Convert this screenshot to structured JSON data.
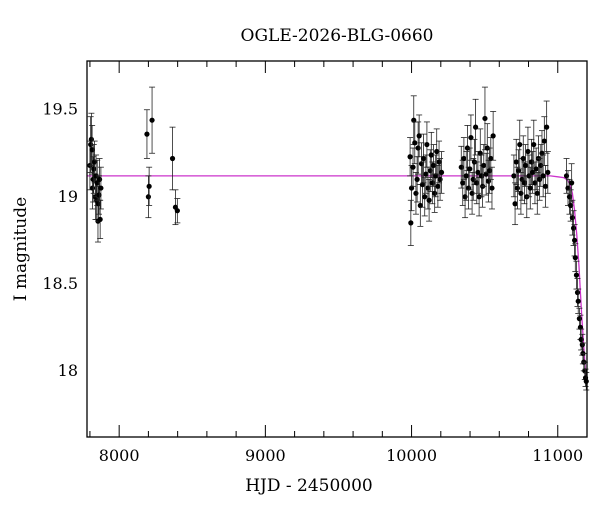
{
  "chart_data": {
    "type": "scatter",
    "title": "OGLE-2026-BLG-0660",
    "xlabel": "HJD - 2450000",
    "ylabel": "I magnitude",
    "xlim": [
      7780,
      11200
    ],
    "ylim": [
      19.78,
      17.62
    ],
    "y_inverted": true,
    "x_ticks": [
      8000,
      9000,
      10000,
      11000
    ],
    "y_ticks": [
      18,
      18.5,
      19,
      19.5
    ],
    "x_tick_labels": [
      "8000",
      "9000",
      "10000",
      "11000"
    ],
    "y_tick_labels": [
      "18",
      "18.5",
      "19",
      "19.5"
    ],
    "baseline_mag": 19.12,
    "colors": {
      "points": "#000000",
      "model": "#cc33cc",
      "frame": "#000000"
    },
    "series": [
      {
        "style": "points-with-errorbars",
        "points": [
          [
            7800,
            19.18,
            0.14
          ],
          [
            7805,
            19.3,
            0.16
          ],
          [
            7810,
            19.33,
            0.15
          ],
          [
            7815,
            19.27,
            0.14
          ],
          [
            7818,
            19.05,
            0.12
          ],
          [
            7822,
            19.1,
            0.13
          ],
          [
            7826,
            19.16,
            0.14
          ],
          [
            7832,
            19.2,
            0.12
          ],
          [
            7838,
            19.0,
            0.13
          ],
          [
            7842,
            19.12,
            0.12
          ],
          [
            7846,
            18.98,
            0.11
          ],
          [
            7850,
            19.08,
            0.13
          ],
          [
            7855,
            18.86,
            0.12
          ],
          [
            7858,
            18.96,
            0.1
          ],
          [
            7862,
            19.01,
            0.11
          ],
          [
            7866,
            19.1,
            0.12
          ],
          [
            7870,
            18.87,
            0.11
          ],
          [
            7875,
            19.05,
            0.12
          ],
          [
            8190,
            19.36,
            0.14
          ],
          [
            8200,
            19.0,
            0.12
          ],
          [
            8205,
            19.06,
            0.11
          ],
          [
            8225,
            19.44,
            0.19
          ],
          [
            8365,
            19.22,
            0.18
          ],
          [
            8385,
            18.94,
            0.1
          ],
          [
            8398,
            18.92,
            0.07
          ],
          [
            9990,
            19.23,
            0.11
          ],
          [
            9995,
            18.85,
            0.13
          ],
          [
            10000,
            19.05,
            0.13
          ],
          [
            10010,
            19.17,
            0.11
          ],
          [
            10015,
            19.44,
            0.14
          ],
          [
            10022,
            19.31,
            0.12
          ],
          [
            10030,
            19.02,
            0.12
          ],
          [
            10038,
            19.1,
            0.13
          ],
          [
            10045,
            19.28,
            0.15
          ],
          [
            10052,
            19.35,
            0.12
          ],
          [
            10060,
            18.95,
            0.12
          ],
          [
            10068,
            19.19,
            0.12
          ],
          [
            10075,
            19.07,
            0.13
          ],
          [
            10082,
            19.22,
            0.14
          ],
          [
            10090,
            19.0,
            0.11
          ],
          [
            10098,
            19.13,
            0.11
          ],
          [
            10105,
            19.3,
            0.13
          ],
          [
            10112,
            19.05,
            0.12
          ],
          [
            10120,
            18.98,
            0.12
          ],
          [
            10128,
            19.15,
            0.12
          ],
          [
            10135,
            19.24,
            0.13
          ],
          [
            10142,
            19.08,
            0.12
          ],
          [
            10150,
            19.18,
            0.12
          ],
          [
            10158,
            19.02,
            0.11
          ],
          [
            10165,
            19.12,
            0.12
          ],
          [
            10172,
            19.26,
            0.13
          ],
          [
            10180,
            19.06,
            0.12
          ],
          [
            10188,
            19.2,
            0.12
          ],
          [
            10195,
            19.1,
            0.12
          ],
          [
            10205,
            19.14,
            0.12
          ],
          [
            10340,
            19.17,
            0.12
          ],
          [
            10350,
            19.08,
            0.13
          ],
          [
            10358,
            19.22,
            0.12
          ],
          [
            10366,
            19.0,
            0.12
          ],
          [
            10374,
            19.12,
            0.14
          ],
          [
            10382,
            19.28,
            0.13
          ],
          [
            10390,
            19.05,
            0.12
          ],
          [
            10398,
            19.16,
            0.12
          ],
          [
            10406,
            19.34,
            0.13
          ],
          [
            10414,
            19.02,
            0.12
          ],
          [
            10422,
            19.1,
            0.12
          ],
          [
            10430,
            19.2,
            0.13
          ],
          [
            10438,
            19.4,
            0.16
          ],
          [
            10446,
            19.08,
            0.12
          ],
          [
            10454,
            19.14,
            0.12
          ],
          [
            10462,
            19.0,
            0.11
          ],
          [
            10470,
            19.25,
            0.14
          ],
          [
            10478,
            19.12,
            0.12
          ],
          [
            10486,
            19.06,
            0.12
          ],
          [
            10494,
            19.18,
            0.12
          ],
          [
            10502,
            19.45,
            0.18
          ],
          [
            10510,
            19.13,
            0.12
          ],
          [
            10518,
            19.28,
            0.14
          ],
          [
            10526,
            19.09,
            0.12
          ],
          [
            10534,
            19.15,
            0.13
          ],
          [
            10542,
            19.22,
            0.12
          ],
          [
            10550,
            19.05,
            0.12
          ],
          [
            10558,
            19.35,
            0.14
          ],
          [
            10700,
            19.12,
            0.12
          ],
          [
            10708,
            18.96,
            0.12
          ],
          [
            10716,
            19.2,
            0.13
          ],
          [
            10724,
            19.05,
            0.12
          ],
          [
            10732,
            19.15,
            0.12
          ],
          [
            10740,
            19.3,
            0.14
          ],
          [
            10748,
            19.02,
            0.12
          ],
          [
            10756,
            19.1,
            0.12
          ],
          [
            10764,
            19.22,
            0.13
          ],
          [
            10772,
            19.08,
            0.12
          ],
          [
            10780,
            19.18,
            0.12
          ],
          [
            10788,
            19.0,
            0.12
          ],
          [
            10796,
            19.26,
            0.14
          ],
          [
            10804,
            19.12,
            0.12
          ],
          [
            10812,
            19.05,
            0.12
          ],
          [
            10820,
            19.2,
            0.13
          ],
          [
            10828,
            19.14,
            0.12
          ],
          [
            10836,
            19.3,
            0.14
          ],
          [
            10844,
            19.08,
            0.12
          ],
          [
            10852,
            19.16,
            0.12
          ],
          [
            10860,
            19.02,
            0.12
          ],
          [
            10868,
            19.22,
            0.13
          ],
          [
            10876,
            19.1,
            0.12
          ],
          [
            10884,
            19.18,
            0.12
          ],
          [
            10892,
            19.25,
            0.13
          ],
          [
            10900,
            19.12,
            0.12
          ],
          [
            10908,
            19.32,
            0.14
          ],
          [
            10916,
            19.06,
            0.12
          ],
          [
            10924,
            19.4,
            0.15
          ],
          [
            10932,
            19.14,
            0.12
          ],
          [
            11060,
            19.12,
            0.1
          ],
          [
            11070,
            19.05,
            0.1
          ],
          [
            11080,
            19.0,
            0.1
          ],
          [
            11088,
            18.95,
            0.09
          ],
          [
            11095,
            19.08,
            0.11
          ],
          [
            11100,
            18.88,
            0.1
          ],
          [
            11108,
            18.82,
            0.1
          ],
          [
            11115,
            18.75,
            0.09
          ],
          [
            11120,
            18.65,
            0.08
          ],
          [
            11128,
            18.55,
            0.08
          ],
          [
            11135,
            18.45,
            0.08
          ],
          [
            11140,
            18.4,
            0.07
          ],
          [
            11148,
            18.3,
            0.06
          ],
          [
            11155,
            18.25,
            0.07
          ],
          [
            11160,
            18.18,
            0.06
          ],
          [
            11168,
            18.15,
            0.06
          ],
          [
            11172,
            18.1,
            0.06
          ],
          [
            11178,
            18.05,
            0.05
          ],
          [
            11185,
            18.0,
            0.05
          ],
          [
            11190,
            17.96,
            0.05
          ],
          [
            11195,
            17.94,
            0.05
          ]
        ]
      },
      {
        "style": "model-curve",
        "points": [
          [
            7780,
            19.12
          ],
          [
            10900,
            19.12
          ],
          [
            10950,
            19.12
          ],
          [
            11000,
            19.115
          ],
          [
            11040,
            19.11
          ],
          [
            11060,
            19.1
          ],
          [
            11080,
            19.08
          ],
          [
            11100,
            19.02
          ],
          [
            11115,
            18.92
          ],
          [
            11130,
            18.78
          ],
          [
            11145,
            18.6
          ],
          [
            11155,
            18.45
          ],
          [
            11165,
            18.3
          ],
          [
            11175,
            18.18
          ],
          [
            11185,
            18.05
          ],
          [
            11195,
            17.94
          ]
        ]
      }
    ]
  }
}
